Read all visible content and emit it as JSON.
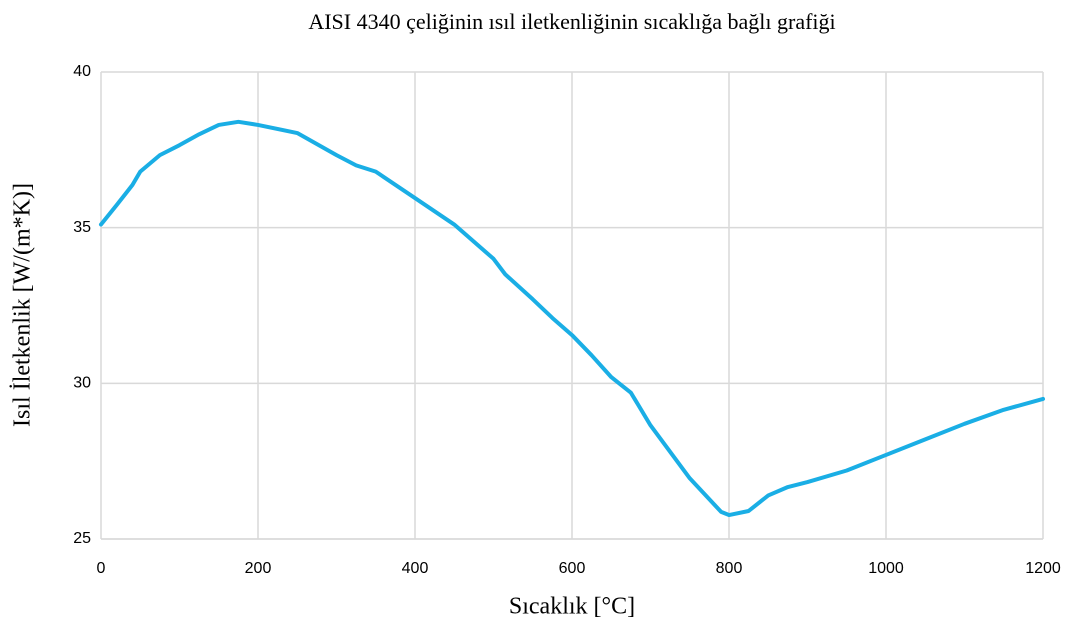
{
  "chart_data": {
    "type": "line",
    "title": "AISI 4340 çeliğinin ısıl iletkenliğinin sıcaklığa bağlı grafiği",
    "xlabel": "Sıcaklık [°C]",
    "ylabel": "Isıl İletkenlik [W/(m*K)]",
    "x": [
      0,
      20,
      40,
      50,
      75,
      100,
      125,
      150,
      175,
      200,
      250,
      300,
      325,
      350,
      400,
      450,
      500,
      515,
      550,
      575,
      600,
      625,
      650,
      675,
      700,
      750,
      790,
      800,
      825,
      850,
      875,
      900,
      950,
      1000,
      1050,
      1100,
      1150,
      1200
    ],
    "series": [
      {
        "name": "Isıl İletkenlik",
        "color": "#1aaee5",
        "values": [
          35.1,
          35.73,
          36.37,
          36.8,
          37.33,
          37.65,
          38.0,
          38.3,
          38.4,
          38.3,
          38.04,
          37.33,
          37.0,
          36.8,
          35.95,
          35.1,
          34.0,
          33.5,
          32.7,
          32.1,
          31.55,
          30.9,
          30.2,
          29.7,
          28.65,
          26.95,
          25.87,
          25.77,
          25.9,
          26.4,
          26.67,
          26.83,
          27.2,
          27.7,
          28.2,
          28.7,
          29.15,
          29.5
        ]
      }
    ],
    "xlim": [
      0,
      1200
    ],
    "xticks": [
      0,
      200,
      400,
      600,
      800,
      1000,
      1200
    ],
    "ylim": [
      25,
      40
    ],
    "yticks": [
      25,
      30,
      35,
      40
    ],
    "grid": true
  }
}
